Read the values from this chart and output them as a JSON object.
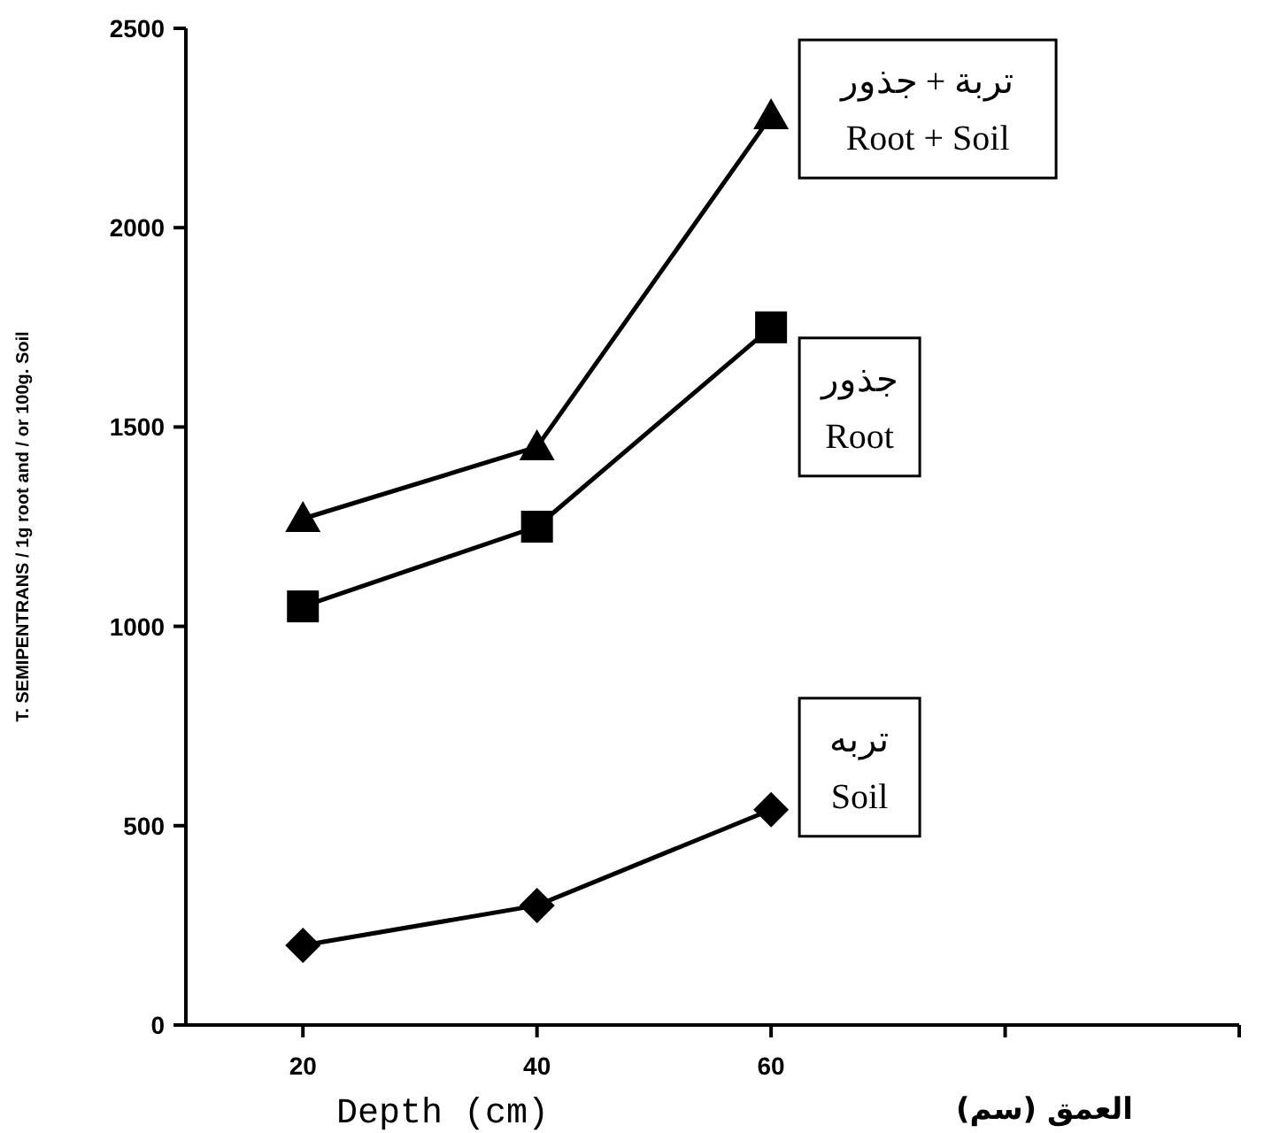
{
  "chart_data": {
    "type": "line",
    "ylabel": "T. SEMIPENTRANS / 1g root and / or 100g. Soil",
    "xlabel": "Depth (cm)",
    "annotations": [
      "العمق (سم)"
    ],
    "x": [
      20,
      40,
      60
    ],
    "xlim": [
      10,
      100
    ],
    "xticks": [
      20,
      40,
      60,
      {
        "value": 80,
        "label": null
      },
      {
        "value": 100,
        "label": null
      }
    ],
    "ylim": [
      0,
      2500
    ],
    "yticks": [
      0,
      500,
      1000,
      1500,
      2000,
      2500
    ],
    "grid": false,
    "legend": false,
    "line_style": "solid",
    "series": [
      {
        "name": "تربة + جذور\nRoot + Soil",
        "color": "#000000",
        "marker": "triangle",
        "values": [
          1270,
          1450,
          2280
        ]
      },
      {
        "name": "جذور\nRoot",
        "color": "#000000",
        "marker": "square",
        "values": [
          1050,
          1250,
          1750
        ]
      },
      {
        "name": "تربه\nSoil",
        "color": "#000000",
        "marker": "diamond",
        "values": [
          200,
          300,
          540
        ]
      }
    ]
  }
}
